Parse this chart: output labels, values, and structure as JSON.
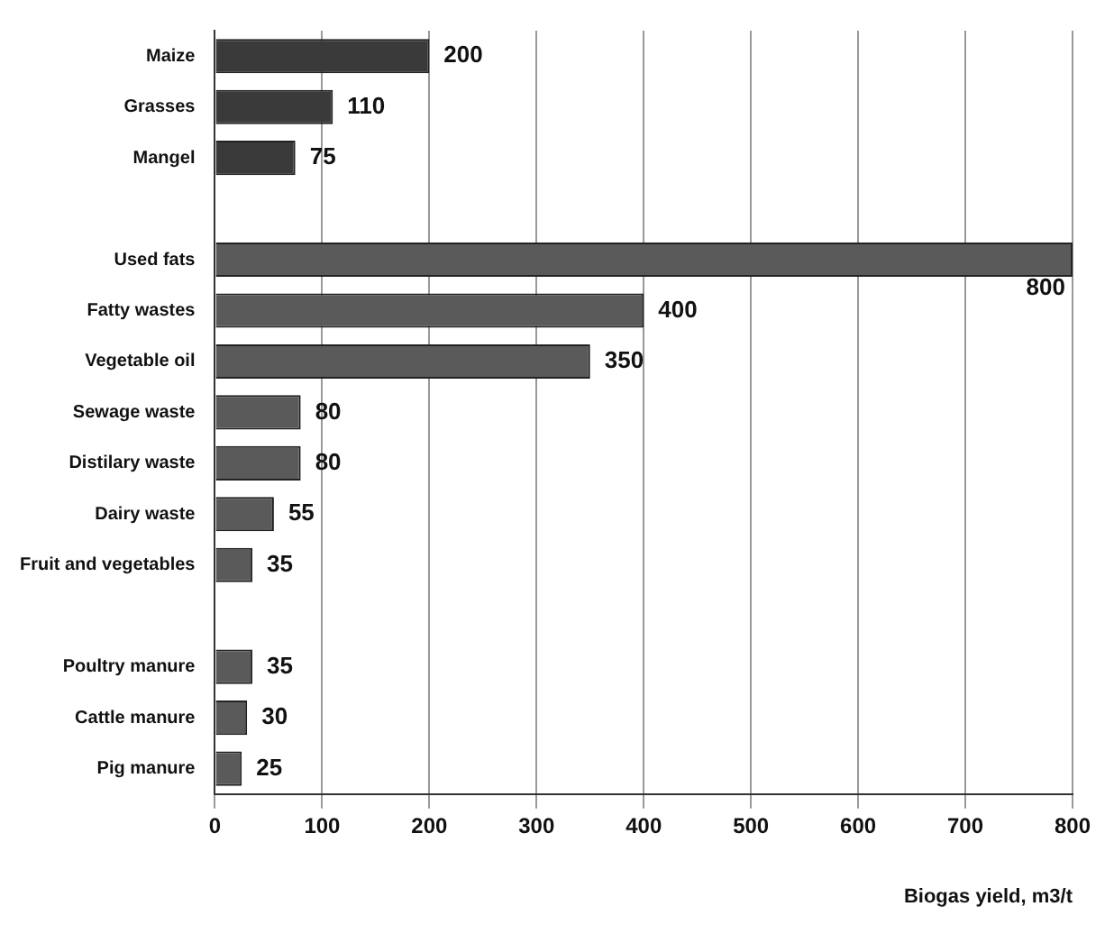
{
  "chart_data": {
    "type": "bar",
    "orientation": "horizontal",
    "xlabel": "Biogas yield, m3/t",
    "categories": [
      "Maize",
      "Grasses",
      "Mangel",
      null,
      "Used fats",
      "Fatty wastes",
      "Vegetable oil",
      "Sewage waste",
      "Distilary waste",
      "Dairy waste",
      "Fruit and vegetables",
      null,
      "Poultry manure",
      "Cattle manure",
      "Pig manure"
    ],
    "values": [
      200,
      110,
      75,
      null,
      800,
      400,
      350,
      80,
      80,
      55,
      35,
      null,
      35,
      30,
      25
    ],
    "colors": [
      "#3a3a3a",
      "#3a3a3a",
      "#3a3a3a",
      "#3a3a3a",
      "#5a5a5a",
      "#5a5a5a",
      "#5a5a5a",
      "#5a5a5a",
      "#5a5a5a",
      "#5a5a5a",
      "#5a5a5a",
      "#5a5a5a",
      "#5a5a5a",
      "#5a5a5a",
      "#5a5a5a"
    ],
    "xlim": [
      0,
      800
    ],
    "xticks": [
      0,
      100,
      200,
      300,
      400,
      500,
      600,
      700,
      800
    ],
    "grid": "x",
    "legend": false,
    "data_labels": true
  }
}
